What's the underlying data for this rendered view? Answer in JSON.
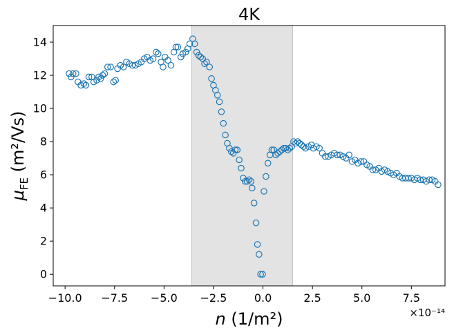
{
  "chart_data": {
    "type": "scatter",
    "title": "4K",
    "xlabel": "n (1/m²)",
    "ylabel": "μFE (m²/Vs)",
    "x_offset_label": "×10⁻¹⁴",
    "xlim": [
      -10.6,
      9.2
    ],
    "ylim": [
      -0.7,
      15.0
    ],
    "xticks": [
      -10.0,
      -7.5,
      -5.0,
      -2.5,
      0.0,
      2.5,
      5.0,
      7.5
    ],
    "xtick_labels": [
      "−10.0",
      "−7.5",
      "−5.0",
      "−2.5",
      "0.0",
      "2.5",
      "5.0",
      "7.5"
    ],
    "yticks": [
      0,
      2,
      4,
      6,
      8,
      10,
      12,
      14
    ],
    "ytick_labels": [
      "0",
      "2",
      "4",
      "6",
      "8",
      "10",
      "12",
      "14"
    ],
    "shaded_region": {
      "x_start": -3.6,
      "x_end": 1.5,
      "color": "#e3e3e3"
    },
    "marker": {
      "style": "open-circle",
      "color": "#1f77b4"
    },
    "grid": false,
    "series": [
      {
        "points": [
          [
            -9.8,
            12.1
          ],
          [
            -9.7,
            11.9
          ],
          [
            -9.6,
            12.1
          ],
          [
            -9.45,
            12.1
          ],
          [
            -9.35,
            11.6
          ],
          [
            -9.2,
            11.4
          ],
          [
            -9.05,
            11.5
          ],
          [
            -8.95,
            11.4
          ],
          [
            -8.8,
            11.9
          ],
          [
            -8.65,
            11.9
          ],
          [
            -8.55,
            11.6
          ],
          [
            -8.4,
            11.7
          ],
          [
            -8.3,
            11.9
          ],
          [
            -8.2,
            11.8
          ],
          [
            -8.1,
            12.0
          ],
          [
            -8.0,
            12.1
          ],
          [
            -7.85,
            12.5
          ],
          [
            -7.7,
            12.5
          ],
          [
            -7.55,
            11.6
          ],
          [
            -7.45,
            11.7
          ],
          [
            -7.35,
            12.4
          ],
          [
            -7.2,
            12.6
          ],
          [
            -7.05,
            12.5
          ],
          [
            -6.9,
            12.8
          ],
          [
            -6.75,
            12.7
          ],
          [
            -6.6,
            12.6
          ],
          [
            -6.45,
            12.6
          ],
          [
            -6.3,
            12.7
          ],
          [
            -6.15,
            12.8
          ],
          [
            -6.0,
            13.0
          ],
          [
            -5.85,
            13.1
          ],
          [
            -5.7,
            12.9
          ],
          [
            -5.55,
            13.0
          ],
          [
            -5.4,
            13.4
          ],
          [
            -5.3,
            13.3
          ],
          [
            -5.15,
            12.8
          ],
          [
            -5.05,
            12.5
          ],
          [
            -4.95,
            13.1
          ],
          [
            -4.8,
            12.9
          ],
          [
            -4.65,
            12.6
          ],
          [
            -4.5,
            13.4
          ],
          [
            -4.4,
            13.7
          ],
          [
            -4.3,
            13.7
          ],
          [
            -4.15,
            13.1
          ],
          [
            -4.05,
            13.3
          ],
          [
            -3.9,
            13.4
          ],
          [
            -3.8,
            13.6
          ],
          [
            -3.7,
            13.9
          ],
          [
            -3.55,
            14.2
          ],
          [
            -3.45,
            13.9
          ],
          [
            -3.35,
            13.4
          ],
          [
            -3.25,
            13.2
          ],
          [
            -3.15,
            13.1
          ],
          [
            -3.05,
            13.0
          ],
          [
            -2.95,
            12.7
          ],
          [
            -2.85,
            12.8
          ],
          [
            -2.7,
            12.5
          ],
          [
            -2.6,
            11.8
          ],
          [
            -2.5,
            11.4
          ],
          [
            -2.4,
            11.1
          ],
          [
            -2.3,
            10.8
          ],
          [
            -2.2,
            10.4
          ],
          [
            -2.1,
            9.8
          ],
          [
            -2.0,
            9.1
          ],
          [
            -1.9,
            8.4
          ],
          [
            -1.8,
            7.9
          ],
          [
            -1.7,
            7.6
          ],
          [
            -1.6,
            7.4
          ],
          [
            -1.5,
            7.3
          ],
          [
            -1.4,
            7.5
          ],
          [
            -1.3,
            7.5
          ],
          [
            -1.2,
            6.9
          ],
          [
            -1.1,
            6.4
          ],
          [
            -1.0,
            5.8
          ],
          [
            -0.9,
            5.6
          ],
          [
            -0.8,
            5.6
          ],
          [
            -0.7,
            5.7
          ],
          [
            -0.6,
            5.6
          ],
          [
            -0.55,
            5.2
          ],
          [
            -0.45,
            4.3
          ],
          [
            -0.35,
            3.1
          ],
          [
            -0.28,
            1.8
          ],
          [
            -0.2,
            1.2
          ],
          [
            -0.12,
            0.0
          ],
          [
            -0.02,
            0.0
          ],
          [
            0.05,
            5.0
          ],
          [
            0.15,
            5.9
          ],
          [
            0.25,
            6.7
          ],
          [
            0.35,
            7.2
          ],
          [
            0.45,
            7.5
          ],
          [
            0.55,
            7.5
          ],
          [
            0.65,
            7.2
          ],
          [
            0.75,
            7.3
          ],
          [
            0.85,
            7.4
          ],
          [
            0.95,
            7.5
          ],
          [
            1.05,
            7.6
          ],
          [
            1.15,
            7.6
          ],
          [
            1.25,
            7.5
          ],
          [
            1.35,
            7.6
          ],
          [
            1.45,
            7.7
          ],
          [
            1.55,
            8.0
          ],
          [
            1.65,
            7.9
          ],
          [
            1.75,
            8.0
          ],
          [
            1.85,
            7.9
          ],
          [
            1.95,
            7.8
          ],
          [
            2.05,
            7.7
          ],
          [
            2.15,
            7.6
          ],
          [
            2.3,
            7.7
          ],
          [
            2.45,
            7.8
          ],
          [
            2.55,
            7.6
          ],
          [
            2.7,
            7.7
          ],
          [
            2.85,
            7.6
          ],
          [
            3.0,
            7.3
          ],
          [
            3.15,
            7.1
          ],
          [
            3.3,
            7.1
          ],
          [
            3.45,
            7.2
          ],
          [
            3.6,
            7.3
          ],
          [
            3.75,
            7.2
          ],
          [
            3.9,
            7.2
          ],
          [
            4.05,
            7.1
          ],
          [
            4.2,
            7.0
          ],
          [
            4.35,
            7.2
          ],
          [
            4.5,
            6.8
          ],
          [
            4.65,
            6.9
          ],
          [
            4.8,
            6.7
          ],
          [
            4.95,
            6.8
          ],
          [
            5.1,
            6.8
          ],
          [
            5.25,
            6.6
          ],
          [
            5.4,
            6.5
          ],
          [
            5.55,
            6.3
          ],
          [
            5.7,
            6.3
          ],
          [
            5.85,
            6.4
          ],
          [
            6.0,
            6.2
          ],
          [
            6.15,
            6.3
          ],
          [
            6.3,
            6.2
          ],
          [
            6.45,
            6.1
          ],
          [
            6.6,
            6.0
          ],
          [
            6.75,
            6.1
          ],
          [
            6.9,
            5.9
          ],
          [
            7.05,
            5.8
          ],
          [
            7.2,
            5.8
          ],
          [
            7.35,
            5.8
          ],
          [
            7.5,
            5.8
          ],
          [
            7.65,
            5.7
          ],
          [
            7.8,
            5.8
          ],
          [
            7.95,
            5.7
          ],
          [
            8.1,
            5.7
          ],
          [
            8.25,
            5.6
          ],
          [
            8.4,
            5.7
          ],
          [
            8.55,
            5.7
          ],
          [
            8.7,
            5.6
          ],
          [
            8.85,
            5.4
          ]
        ]
      }
    ]
  }
}
